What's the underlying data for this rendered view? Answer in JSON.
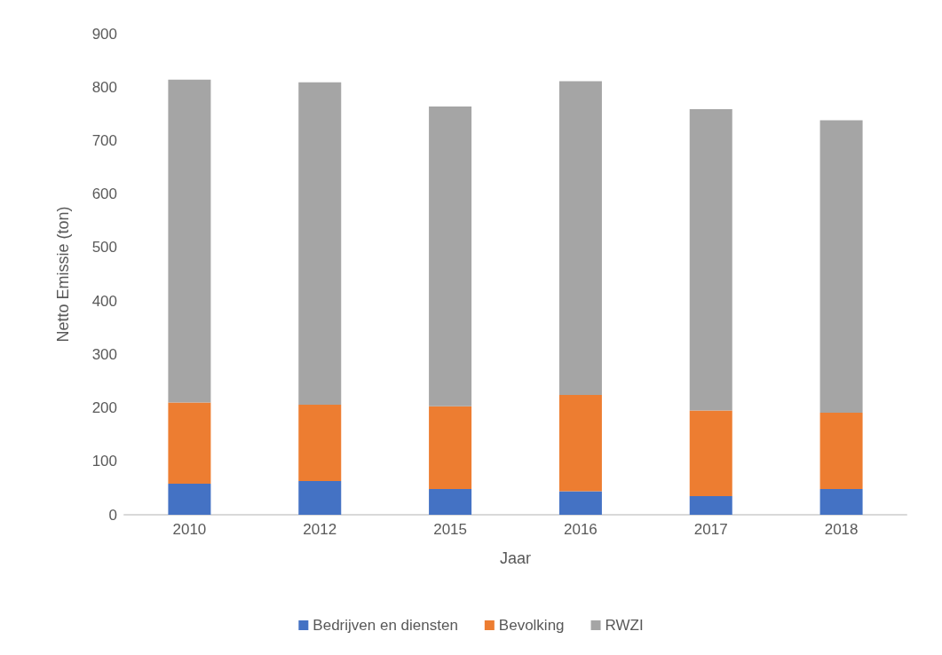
{
  "chart_data": {
    "type": "bar",
    "stacked": true,
    "xlabel": "Jaar",
    "ylabel": "Netto Emissie (ton)",
    "categories": [
      "2010",
      "2012",
      "2015",
      "2016",
      "2017",
      "2018"
    ],
    "series": [
      {
        "name": "Bedrijven en diensten",
        "color": "#4472c4",
        "values": [
          58,
          63,
          48,
          44,
          35,
          48
        ]
      },
      {
        "name": "Bevolking",
        "color": "#ed7d31",
        "values": [
          152,
          143,
          155,
          180,
          160,
          143
        ]
      },
      {
        "name": "RWZI",
        "color": "#a5a5a5",
        "values": [
          604,
          603,
          561,
          587,
          564,
          547
        ]
      }
    ],
    "ylim": [
      0,
      900
    ],
    "yticks": [
      0,
      100,
      200,
      300,
      400,
      500,
      600,
      700,
      800,
      900
    ],
    "grid": false,
    "legend": "bottom"
  }
}
